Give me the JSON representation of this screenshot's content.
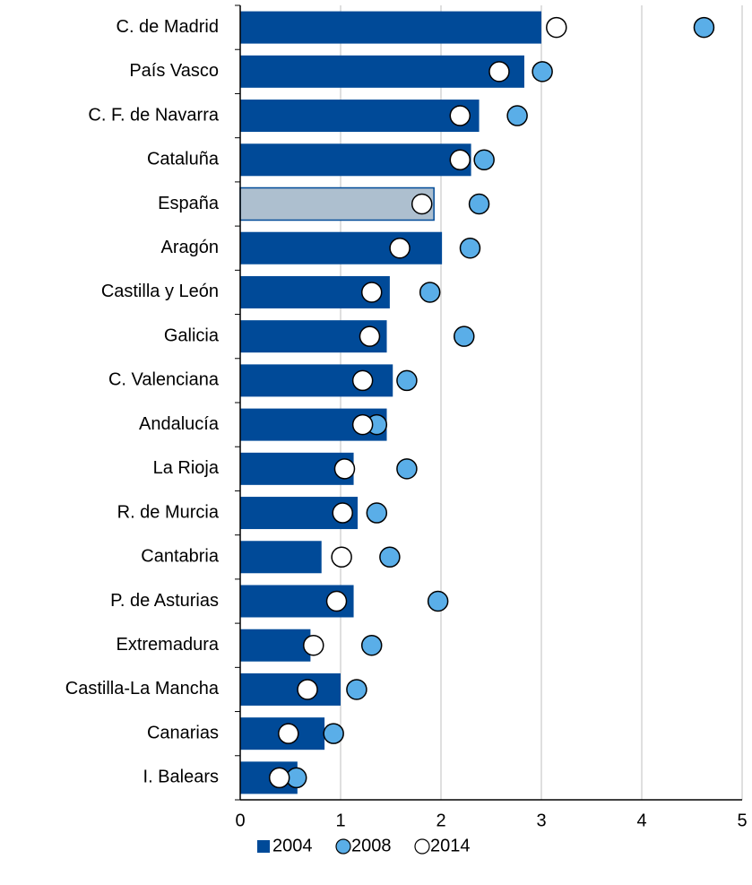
{
  "chart_data": {
    "type": "bar",
    "orientation": "horizontal",
    "categories": [
      "C. de Madrid",
      "País Vasco",
      "C. F. de Navarra",
      "Cataluña",
      "España",
      "Aragón",
      "Castilla y León",
      "Galicia",
      "C. Valenciana",
      "Andalucía",
      "La Rioja",
      "R. de Murcia",
      "Cantabria",
      "P. de Asturias",
      "Extremadura",
      "Castilla-La Mancha",
      "Canarias",
      "I. Balears"
    ],
    "series": [
      {
        "name": "2004",
        "style": "bar",
        "color": "#004a98",
        "highlight_index": 4,
        "highlight_color": "#adbfcf",
        "values": [
          3.0,
          2.83,
          2.38,
          2.3,
          1.93,
          2.01,
          1.49,
          1.46,
          1.52,
          1.46,
          1.13,
          1.17,
          0.81,
          1.13,
          0.7,
          1.0,
          0.84,
          0.57
        ]
      },
      {
        "name": "2008",
        "style": "dot",
        "color": "#5aaee8",
        "values": [
          4.62,
          3.01,
          2.76,
          2.43,
          2.38,
          2.29,
          1.89,
          2.23,
          1.66,
          1.36,
          1.66,
          1.36,
          1.49,
          1.97,
          1.31,
          1.16,
          0.93,
          0.56
        ]
      },
      {
        "name": "2014",
        "style": "dot",
        "color": "#ffffff",
        "values": [
          3.15,
          2.58,
          2.19,
          2.19,
          1.81,
          1.59,
          1.31,
          1.29,
          1.22,
          1.22,
          1.04,
          1.02,
          1.01,
          0.96,
          0.73,
          0.67,
          0.48,
          0.39
        ]
      }
    ],
    "xlim": [
      0,
      5
    ],
    "xticks": [
      0,
      1,
      2,
      3,
      4,
      5
    ],
    "grid": true,
    "legend": "bottom"
  }
}
